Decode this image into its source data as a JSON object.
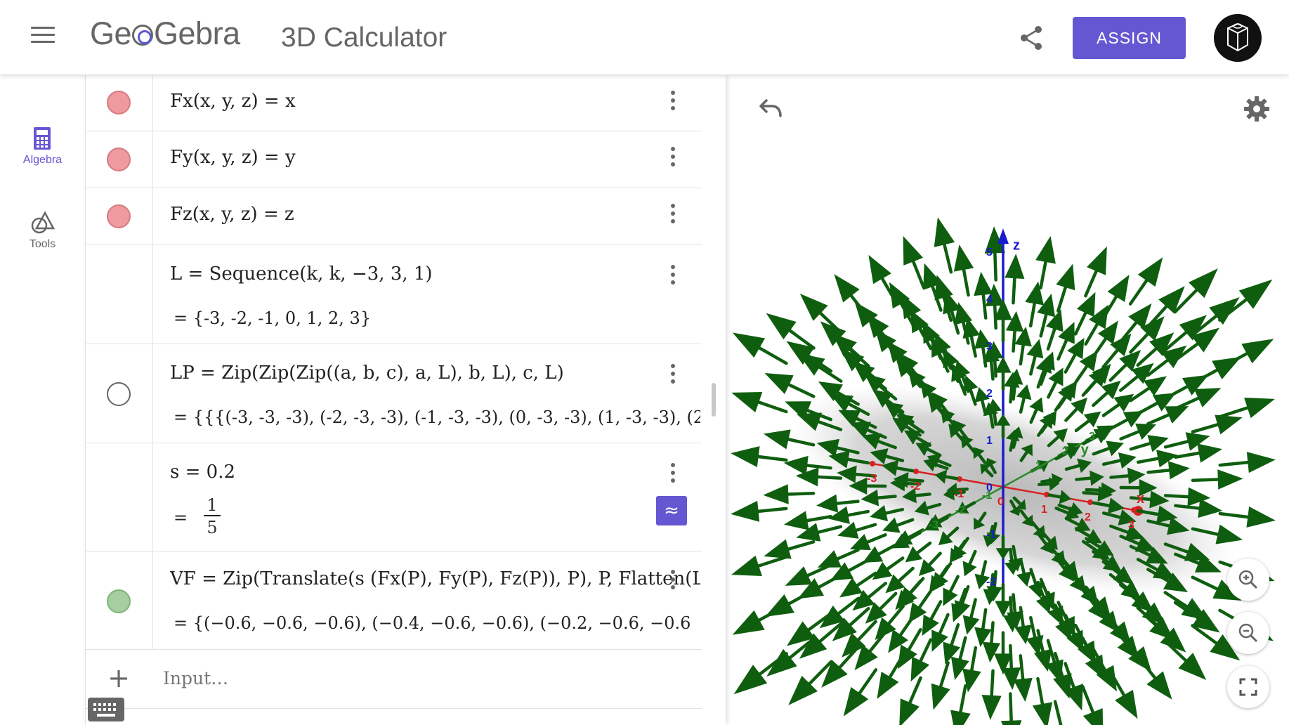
{
  "header": {
    "logo_left": "Ge",
    "logo_right": "Gebra",
    "app_title": "3D Calculator",
    "assign_label": "ASSIGN"
  },
  "rail": {
    "items": [
      {
        "label": "Algebra",
        "icon": "calculator-icon",
        "active": true
      },
      {
        "label": "Tools",
        "icon": "tools-shapes-icon",
        "active": false
      }
    ]
  },
  "algebra": {
    "rows": [
      {
        "expr": "Fx(x, y, z)  =  x",
        "marble": "red"
      },
      {
        "expr": "Fy(x, y, z)  =  y",
        "marble": "red"
      },
      {
        "expr": "Fz(x, y, z)  =  z",
        "marble": "red"
      },
      {
        "expr": "L  =  Sequence(k, k, −3, 3, 1)",
        "output": "=  {-3, -2, -1, 0, 1, 2, 3}",
        "marble": "none"
      },
      {
        "expr": "LP  =  Zip(Zip(Zip((a,  b,  c), a, L), b, L), c, L)",
        "output": "=  {{{(-3, -3, -3), (-2, -3, -3), (-1, -3, -3), (0, -3, -3), (1, -3, -3), (2",
        "marble": "empty"
      },
      {
        "expr": "s  =  0.2",
        "output_prefix": "=",
        "frac_num": "1",
        "frac_den": "5",
        "marble": "none",
        "approx_label": "≈"
      },
      {
        "expr": "VF  =  Zip(Translate(s (Fx(P),  Fy(P),  Fz(P)), P), P, Flatten(LP",
        "output": "=  {(−0.6, −0.6, −0.6),  (−0.4, −0.6, −0.6),  (−0.2, −0.6, −0.6",
        "marble": "green"
      }
    ],
    "input_placeholder": "Input…",
    "add_label": "+"
  },
  "graphics": {
    "axis_labels": {
      "x": "x",
      "y": "y",
      "z": "z"
    },
    "z_ticks": [
      "5",
      "4",
      "3",
      "2",
      "1",
      "0",
      "-1",
      "-2"
    ],
    "x_ticks": [
      "-3",
      "-2",
      "-1",
      "0",
      "1",
      "2",
      "3"
    ],
    "y_ticks": [
      "-3",
      "-2",
      "-1",
      "1",
      "2",
      "3"
    ],
    "colors": {
      "accent": "#6557d2",
      "arrow": "#0f5e0f",
      "x_axis": "#d62222",
      "y_axis": "#2a8a2a",
      "z_axis": "#1a1ad0",
      "plane": "#bdbdbd"
    }
  }
}
